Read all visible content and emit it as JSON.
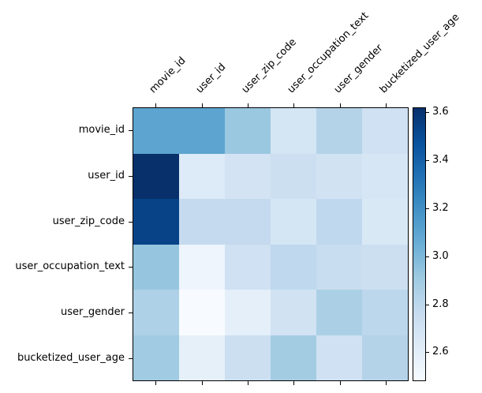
{
  "chart_data": {
    "type": "heatmap",
    "title": "",
    "xlabel": "",
    "ylabel": "",
    "rows": [
      "movie_id",
      "user_id",
      "user_zip_code",
      "user_occupation_text",
      "user_gender",
      "bucketized_user_age"
    ],
    "columns": [
      "movie_id",
      "user_id",
      "user_zip_code",
      "user_occupation_text",
      "user_gender",
      "bucketized_user_age"
    ],
    "values": [
      [
        3.1,
        3.1,
        2.92,
        2.68,
        2.83,
        2.71
      ],
      [
        3.62,
        2.63,
        2.69,
        2.73,
        2.7,
        2.67
      ],
      [
        3.54,
        2.77,
        2.77,
        2.68,
        2.79,
        2.65
      ],
      [
        2.93,
        2.53,
        2.71,
        2.79,
        2.75,
        2.73
      ],
      [
        2.85,
        2.48,
        2.59,
        2.7,
        2.86,
        2.8
      ],
      [
        2.9,
        2.58,
        2.73,
        2.89,
        2.71,
        2.83
      ]
    ],
    "vmin": 2.48,
    "vmax": 3.62,
    "colormap": "Blues",
    "colormap_stops": [
      "#f7fbff",
      "#deebf7",
      "#c6dbef",
      "#9ecae1",
      "#6baed6",
      "#4292c6",
      "#2171b5",
      "#08519c",
      "#08306b"
    ],
    "colorbar": {
      "ticks": [
        2.6,
        2.8,
        3.0,
        3.2,
        3.4,
        3.6
      ],
      "tick_labels": [
        "2.6",
        "2.8",
        "3.0",
        "3.2",
        "3.4",
        "3.6"
      ],
      "position": "right"
    },
    "layout_hints": {
      "x_labels_position": "top",
      "x_labels_rotation_deg": 45,
      "grid": false,
      "frame_color": "#000000",
      "background": "#ffffff"
    }
  }
}
